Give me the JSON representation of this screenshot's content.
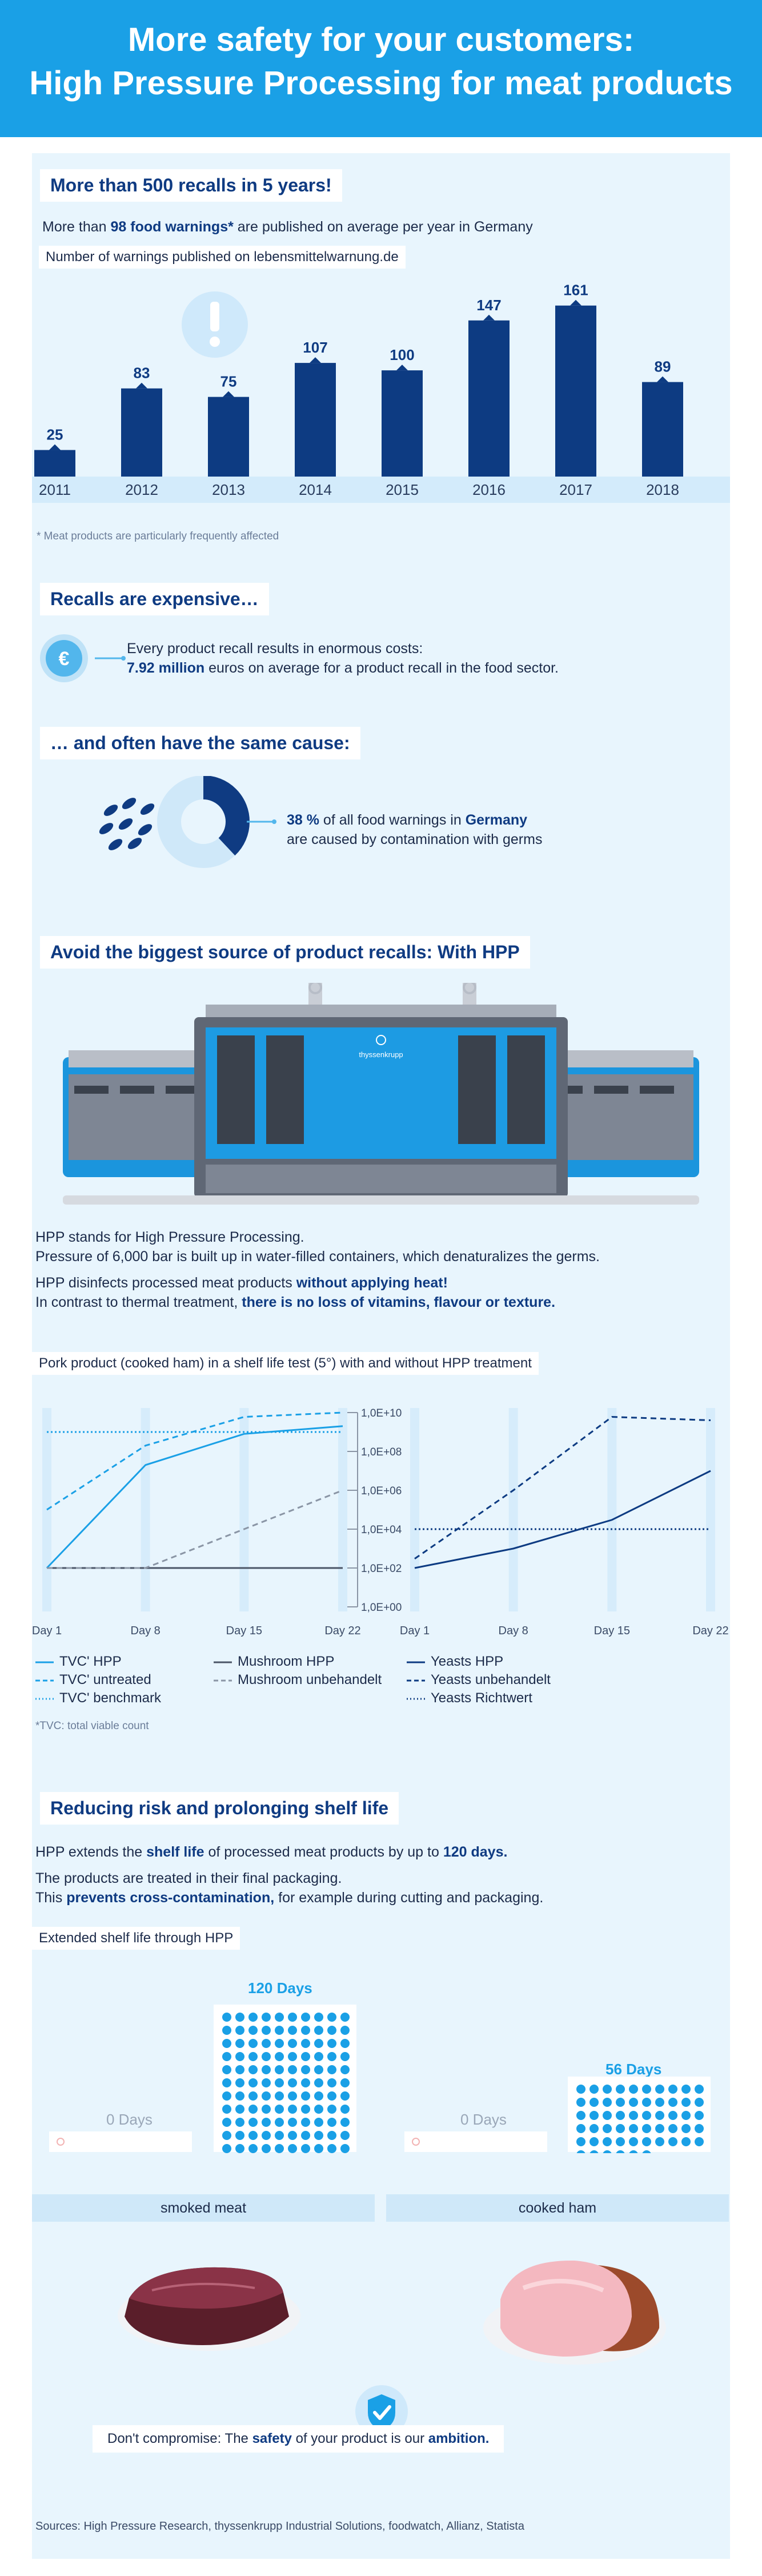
{
  "header": {
    "line1": "More safety for your customers:",
    "line2": "High Pressure Processing for meat products"
  },
  "recalls_section": {
    "title": "More than 500 recalls in 5 years!",
    "intro_pre": "More than ",
    "intro_bold": "98 food warnings*",
    "intro_post": " are published on average per year in Germany",
    "chart_caption": "Number of warnings published on lebensmittelwarnung.de",
    "footnote": "* Meat products are particularly frequently affected"
  },
  "chart_data": [
    {
      "type": "bar",
      "categories": [
        "2011",
        "2012",
        "2013",
        "2014",
        "2015",
        "2016",
        "2017",
        "2018"
      ],
      "values": [
        25,
        83,
        75,
        107,
        100,
        147,
        161,
        89
      ],
      "ylim": [
        0,
        170
      ],
      "color": "#0d3b82"
    },
    {
      "type": "line",
      "title": "Pork product (cooked ham) in a shelf life test (5°) with and without HPP treatment",
      "x": [
        "Day 1",
        "Day 8",
        "Day 15",
        "Day 22"
      ],
      "y_scale": "log",
      "y_ticks": [
        "1,0E+10",
        "1,0E+08",
        "1,0E+06",
        "1,0E+04",
        "1,0E+02",
        "1,0E+00"
      ],
      "ylim": [
        1,
        10000000000
      ],
      "panels": [
        {
          "series": [
            {
              "name": "TVC' HPP",
              "style": "solid",
              "color": "#1aa0e6",
              "values": [
                100,
                20000000,
                800000000,
                2000000000
              ]
            },
            {
              "name": "TVC' untreated",
              "style": "dashed",
              "color": "#1aa0e6",
              "values": [
                100000,
                200000000,
                6000000000,
                10000000000
              ]
            },
            {
              "name": "TVC' benchmark",
              "style": "dotted",
              "color": "#1aa0e6",
              "values": [
                1000000000,
                1000000000,
                1000000000,
                1000000000
              ]
            },
            {
              "name": "Mushroom HPP",
              "style": "solid",
              "color": "#4a5566",
              "values": [
                100,
                100,
                100,
                100
              ]
            },
            {
              "name": "Mushroom unbehandelt",
              "style": "dashed",
              "color": "#8a95a5",
              "values": [
                100,
                100,
                10000,
                1000000
              ]
            }
          ]
        },
        {
          "series": [
            {
              "name": "Yeasts HPP",
              "style": "solid",
              "color": "#0d3b82",
              "values": [
                100,
                1000,
                30000,
                10000000
              ]
            },
            {
              "name": "Yeasts unbehandelt",
              "style": "dashed",
              "color": "#0d3b82",
              "values": [
                300,
                1000000,
                6000000000,
                4000000000
              ]
            },
            {
              "name": "Yeasts Richtwert",
              "style": "dotted",
              "color": "#0d3b82",
              "values": [
                10000,
                10000,
                10000,
                10000
              ]
            }
          ]
        }
      ]
    },
    {
      "type": "bar",
      "title": "Extended shelf life through HPP",
      "categories": [
        "smoked meat",
        "cooked ham"
      ],
      "series": [
        {
          "values": [
            0,
            0
          ],
          "labels": [
            "0 Days",
            "0 Days"
          ]
        },
        {
          "values": [
            120,
            56
          ],
          "labels": [
            "120 Days",
            "56 Days"
          ]
        }
      ],
      "color": "#1aa0e6"
    }
  ],
  "cost_section": {
    "title": "Recalls are expensive…",
    "line1": "Every product recall results in enormous costs:",
    "line2_bold": "7.92 million",
    "line2_rest": " euros on average for a product recall in the food sector."
  },
  "cause_section": {
    "title": "… and often have the same cause:",
    "percent_value": 38,
    "pct_bold": "38 %",
    "line1_mid": " of all food warnings in ",
    "line1_bold2": "Germany",
    "line2": "are caused by contamination with germs"
  },
  "hpp_section": {
    "title": "Avoid the biggest source of product recalls: With HPP",
    "machine_brand": "thyssenkrupp",
    "p1": "HPP stands for High Pressure Processing.",
    "p2": "Pressure of 6,000 bar is built up in water-filled containers, which denaturalizes the germs.",
    "p3_pre": "HPP disinfects processed meat products ",
    "p3_bold": "without applying heat!",
    "p4_pre": "In contrast to thermal treatment, ",
    "p4_bold": "there is no loss of vitamins, flavour or texture.",
    "chart_caption": "Pork product (cooked ham) in a shelf life test (5°) with and without HPP treatment",
    "tvc_footnote": "*TVC: total viable count"
  },
  "shelf_section": {
    "title": "Reducing risk and prolonging shelf life",
    "s1_pre": "HPP extends the ",
    "s1_bold": "shelf life",
    "s1_mid": " of processed meat products by up to ",
    "s1_bold2": "120 days.",
    "s2": "The products are treated in their final packaging.",
    "s3_pre": "This ",
    "s3_bold": "prevents cross-contamination,",
    "s3_post": " for example during cutting and packaging.",
    "chart_caption": "Extended shelf life through HPP"
  },
  "closing": {
    "pre": "Don't compromise: The ",
    "bold1": "safety",
    "mid": " of your product is our ",
    "bold2": "ambition."
  },
  "sources": "Sources: High Pressure Research, thyssenkrupp Industrial Solutions, foodwatch, Allianz, Statista",
  "icons": {
    "alert": "exclamation-icon",
    "money": "euro-coin-icon",
    "germs": "bacteria-icon",
    "shield": "shield-check-icon"
  },
  "colors": {
    "header": "#1aa0e6",
    "navy": "#0f3b82",
    "panel": "#e8f5fd",
    "accent": "#1aa0e6"
  }
}
